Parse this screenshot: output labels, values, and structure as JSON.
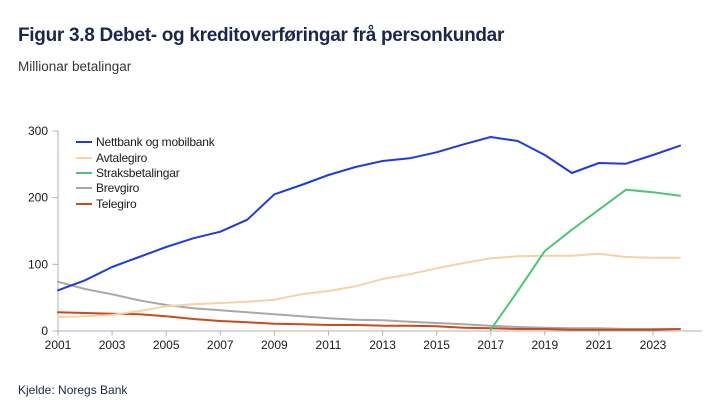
{
  "header": {
    "title": "Figur 3.8 Debet- og kreditoverføringar frå personkundar",
    "subtitle": "Millionar betalingar"
  },
  "footer": {
    "source": "Kjelde: Noregs Bank"
  },
  "colors": {
    "title_navy": "#1b2749",
    "axis": "#b0b0b0",
    "tick_label": "#1a1a1a"
  },
  "chart_data": {
    "type": "line",
    "title": "Figur 3.8 Debet- og kreditoverføringar frå personkundar",
    "subtitle_unit": "Millionar betalingar",
    "x": [
      2001,
      2002,
      2003,
      2004,
      2005,
      2006,
      2007,
      2008,
      2009,
      2010,
      2011,
      2012,
      2013,
      2014,
      2015,
      2016,
      2017,
      2018,
      2019,
      2020,
      2021,
      2022,
      2023,
      2024
    ],
    "series": [
      {
        "name": "Nettbank og mobilbank",
        "color": "#1f3be0",
        "values": [
          61,
          76,
          96,
          111,
          126,
          139,
          149,
          167,
          205,
          219,
          234,
          246,
          255,
          259,
          268,
          280,
          291,
          285,
          264,
          237,
          252,
          251,
          264,
          278
        ]
      },
      {
        "name": "Avtalegiro",
        "color": "#f4d3a6",
        "values": [
          21,
          22,
          24,
          30,
          37,
          40,
          42,
          44,
          47,
          55,
          60,
          67,
          78,
          85,
          94,
          102,
          109,
          112,
          113,
          113,
          116,
          111,
          110,
          110
        ]
      },
      {
        "name": "Straksbetalingar",
        "color": "#4fc573",
        "values": [
          null,
          null,
          null,
          null,
          null,
          null,
          null,
          null,
          null,
          null,
          null,
          null,
          null,
          null,
          null,
          null,
          2,
          60,
          120,
          152,
          182,
          212,
          208,
          203
        ]
      },
      {
        "name": "Brevgiro",
        "color": "#a8a8a8",
        "values": [
          74,
          63,
          55,
          46,
          39,
          34,
          31,
          28,
          25,
          22,
          19,
          17,
          16,
          14,
          12,
          10,
          8,
          6,
          5,
          4,
          4,
          3,
          3,
          3
        ]
      },
      {
        "name": "Telegiro",
        "color": "#cb4a1c",
        "values": [
          28,
          27,
          26,
          25,
          22,
          18,
          15,
          13,
          11,
          10,
          9,
          9,
          8,
          8,
          7,
          5,
          4,
          3,
          3,
          2,
          2,
          2,
          2,
          3
        ]
      }
    ],
    "xticks": [
      2001,
      2003,
      2005,
      2007,
      2009,
      2011,
      2013,
      2015,
      2017,
      2019,
      2021,
      2023
    ],
    "yticks": [
      0,
      100,
      200,
      300
    ],
    "ylim": [
      0,
      300
    ],
    "xlabel": "",
    "ylabel": "",
    "grid": false,
    "legend_position": "inside-top-left"
  }
}
